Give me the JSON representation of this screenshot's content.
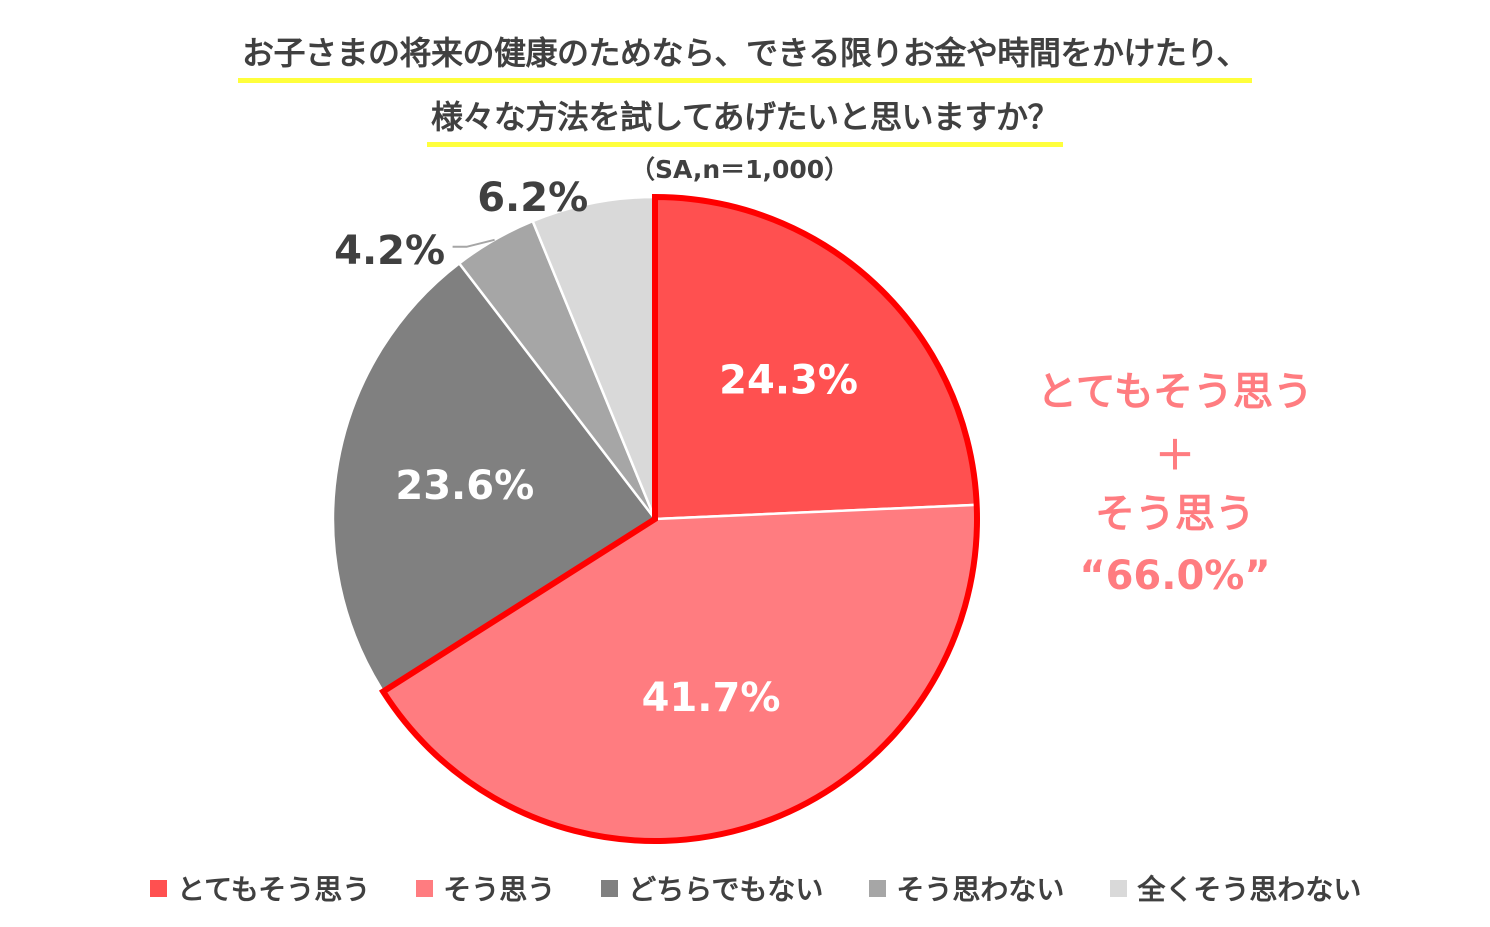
{
  "title": {
    "line1": "お子さまの将来の健康のためなら、できる限りお金や時間をかけたり、",
    "line2": "様々な方法を試してあげたいと思いますか？",
    "subtitle": "（SA,n＝1,000）"
  },
  "summary": {
    "line1": "とてもそう思う",
    "line2": "＋",
    "line3": "そう思う",
    "line4": "“66.0%”"
  },
  "chart_data": {
    "type": "pie",
    "title": "お子さまの将来の健康のためなら、できる限りお金や時間をかけたり、様々な方法を試してあげたいと思いますか？",
    "categories": [
      "とてもそう思う",
      "そう思う",
      "どちらでもない",
      "そう思わない",
      "全くそう思わない"
    ],
    "values": [
      24.3,
      41.7,
      23.6,
      4.2,
      6.2
    ],
    "labels": [
      "24.3%",
      "41.7%",
      "23.6%",
      "4.2%",
      "6.2%"
    ],
    "colors": [
      "#ff5050",
      "#ff7c80",
      "#808080",
      "#a6a6a6",
      "#d9d9d9"
    ],
    "highlight_color": "#ff0000",
    "legend_position": "bottom"
  }
}
